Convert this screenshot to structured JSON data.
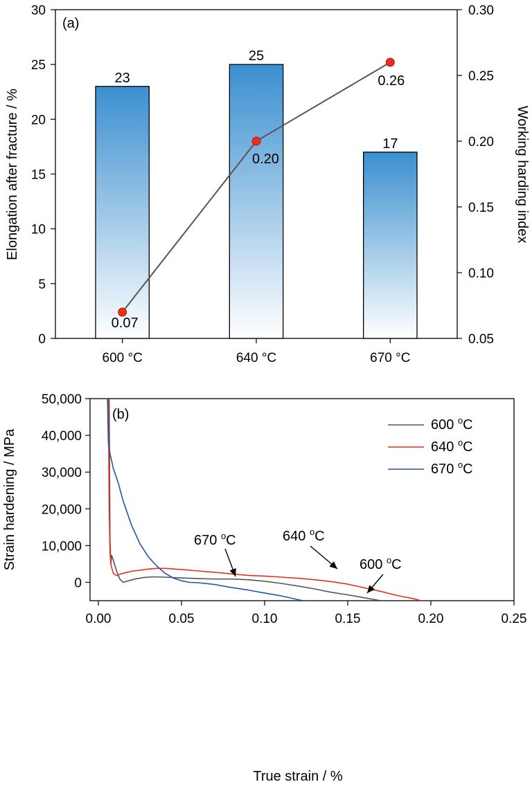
{
  "chart_data": [
    {
      "panel": "(a)",
      "type": "bar",
      "categories": [
        "600 °C",
        "640 °C",
        "670 °C"
      ],
      "ylabel": "Elongation after fracture / %",
      "ylim": [
        0,
        30
      ],
      "yticks": [
        "0",
        "5",
        "10",
        "15",
        "20",
        "25",
        "30"
      ],
      "series": [
        {
          "name": "Elongation after fracture",
          "type": "bar",
          "values": [
            23,
            25,
            17
          ],
          "labels": [
            "23",
            "25",
            "17"
          ]
        },
        {
          "name": "Working harding index",
          "type": "line",
          "axis": "right",
          "values": [
            0.07,
            0.2,
            0.26
          ],
          "labels": [
            "0.07",
            "0.20",
            "0.26"
          ],
          "color": "#e8301c"
        }
      ],
      "y2label": "Working harding index",
      "y2lim": [
        0.05,
        0.3
      ],
      "y2ticks": [
        "0.05",
        "0.10",
        "0.15",
        "0.20",
        "0.25",
        "0.30"
      ],
      "colors": {
        "bar_top": "#3b8fd0",
        "bar_bottom": "#ffffff",
        "line": "#555555",
        "marker": "#e8301c"
      }
    },
    {
      "panel": "(b)",
      "type": "line",
      "xlabel": "True strain / %",
      "ylabel": "Strain hardening / MPa",
      "xlim": [
        0,
        0.25
      ],
      "ylim": [
        -5000,
        50000
      ],
      "xticks": [
        "0.00",
        "0.05",
        "0.10",
        "0.15",
        "0.20",
        "0.25"
      ],
      "yticks": [
        "0",
        "10,000",
        "20,000",
        "30,000",
        "40,000",
        "50,000"
      ],
      "series": [
        {
          "name": "600 °C",
          "color": "#555555",
          "x": [
            0.0065,
            0.007,
            0.0075,
            0.008,
            0.009,
            0.011,
            0.013,
            0.015,
            0.018,
            0.022,
            0.027,
            0.033,
            0.04,
            0.05,
            0.06,
            0.07,
            0.08,
            0.09,
            0.1,
            0.11,
            0.12,
            0.13,
            0.14,
            0.15,
            0.16,
            0.17
          ],
          "y": [
            50000,
            12000,
            5000,
            7300,
            6000,
            3000,
            800,
            0,
            400,
            900,
            1300,
            1500,
            1400,
            1200,
            1000,
            900,
            900,
            700,
            300,
            -300,
            -1000,
            -1800,
            -2700,
            -3400,
            -4200,
            -5000
          ]
        },
        {
          "name": "640 °C",
          "color": "#e8301c",
          "x": [
            0.006,
            0.0065,
            0.007,
            0.0075,
            0.008,
            0.009,
            0.011,
            0.013,
            0.016,
            0.02,
            0.025,
            0.03,
            0.035,
            0.04,
            0.05,
            0.06,
            0.07,
            0.08,
            0.09,
            0.1,
            0.11,
            0.12,
            0.13,
            0.14,
            0.15,
            0.16,
            0.17,
            0.18,
            0.19,
            0.194
          ],
          "y": [
            50000,
            20000,
            8000,
            5000,
            4000,
            2500,
            1800,
            2200,
            2600,
            3000,
            3300,
            3600,
            3800,
            3800,
            3500,
            3100,
            2700,
            2300,
            1900,
            1700,
            1400,
            1100,
            700,
            200,
            -500,
            -1500,
            -2500,
            -3600,
            -4500,
            -5000
          ]
        },
        {
          "name": "670 °C",
          "color": "#2454a8",
          "x": [
            0.0055,
            0.006,
            0.007,
            0.009,
            0.012,
            0.015,
            0.02,
            0.025,
            0.03,
            0.035,
            0.04,
            0.045,
            0.05,
            0.055,
            0.06,
            0.07,
            0.08,
            0.09,
            0.1,
            0.11,
            0.12,
            0.123
          ],
          "y": [
            50000,
            38000,
            35000,
            31000,
            27000,
            22000,
            15500,
            10500,
            7000,
            4500,
            2500,
            1200,
            400,
            0,
            -100,
            -600,
            -1400,
            -2100,
            -2900,
            -3700,
            -4700,
            -5000
          ]
        }
      ],
      "annotations": [
        {
          "base": "670 ",
          "sup": "o",
          "tail": "C"
        },
        {
          "base": "640 ",
          "sup": "o",
          "tail": "C"
        },
        {
          "base": "600 ",
          "sup": "o",
          "tail": "C"
        }
      ],
      "legend": [
        {
          "base": "600 ",
          "sup": "o",
          "tail": "C"
        },
        {
          "base": "640 ",
          "sup": "o",
          "tail": "C"
        },
        {
          "base": "670 ",
          "sup": "o",
          "tail": "C"
        }
      ]
    }
  ]
}
